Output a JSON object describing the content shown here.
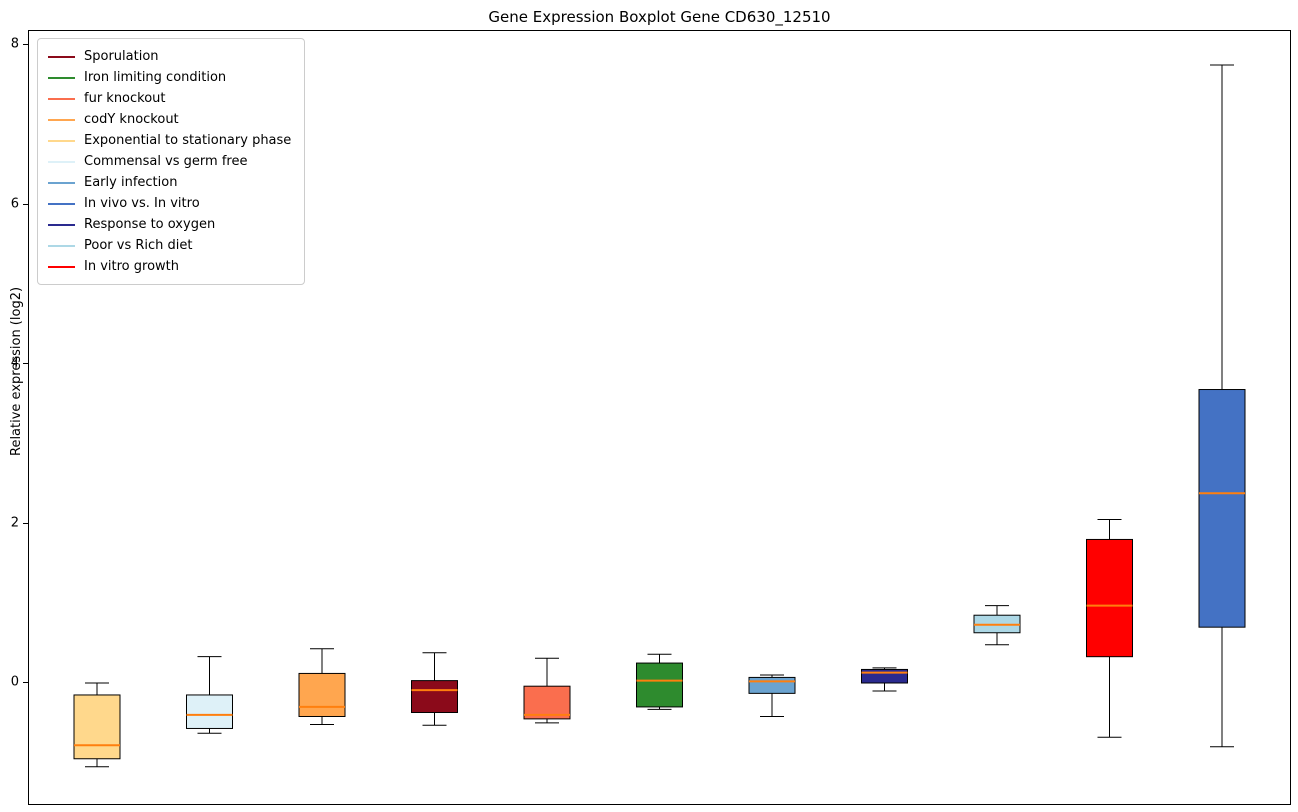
{
  "chart_data": {
    "type": "box",
    "title": "Gene Expression Boxplot Gene CD630_12510",
    "ylabel": "Relative expression (log2)",
    "xlabel": "",
    "yticks": [
      0,
      2,
      4,
      6,
      8
    ],
    "ylim": [
      -1.55,
      8.18
    ],
    "grid": false,
    "legend_position": "upper left",
    "median_color": "#ff7f0e",
    "legend": [
      {
        "label": "Sporulation",
        "color": "#8b0a1a"
      },
      {
        "label": "Iron limiting condition",
        "color": "#2e8b2e"
      },
      {
        "label": "fur knockout",
        "color": "#fa6e4e"
      },
      {
        "label": "codY knockout",
        "color": "#ffa64f"
      },
      {
        "label": "Exponential to stationary phase",
        "color": "#ffd88c"
      },
      {
        "label": "Commensal vs germ free",
        "color": "#def1f8"
      },
      {
        "label": "Early infection",
        "color": "#6ba3d0"
      },
      {
        "label": "In vivo vs. In vitro",
        "color": "#4472c4"
      },
      {
        "label": "Response to oxygen",
        "color": "#2a2a8f"
      },
      {
        "label": "Poor vs Rich diet",
        "color": "#add8e6"
      },
      {
        "label": "In vitro growth",
        "color": "#ff0000"
      }
    ],
    "boxes": [
      {
        "name": "Exponential to stationary phase",
        "color": "#ffd88c",
        "whisker_low": -1.05,
        "q1": -0.95,
        "median": -0.78,
        "q3": -0.15,
        "whisker_high": 0.0
      },
      {
        "name": "Commensal vs germ free",
        "color": "#def1f8",
        "whisker_low": -0.63,
        "q1": -0.57,
        "median": -0.4,
        "q3": -0.15,
        "whisker_high": 0.33
      },
      {
        "name": "codY knockout",
        "color": "#ffa64f",
        "whisker_low": -0.52,
        "q1": -0.42,
        "median": -0.3,
        "q3": 0.12,
        "whisker_high": 0.43
      },
      {
        "name": "Sporulation",
        "color": "#8b0a1a",
        "whisker_low": -0.53,
        "q1": -0.37,
        "median": -0.09,
        "q3": 0.03,
        "whisker_high": 0.38
      },
      {
        "name": "fur knockout",
        "color": "#fa6e4e",
        "whisker_low": -0.5,
        "q1": -0.45,
        "median": -0.4,
        "q3": -0.04,
        "whisker_high": 0.31
      },
      {
        "name": "Iron limiting condition",
        "color": "#2e8b2e",
        "whisker_low": -0.33,
        "q1": -0.3,
        "median": 0.03,
        "q3": 0.25,
        "whisker_high": 0.36
      },
      {
        "name": "Early infection",
        "color": "#6ba3d0",
        "whisker_low": -0.42,
        "q1": -0.13,
        "median": 0.02,
        "q3": 0.07,
        "whisker_high": 0.1
      },
      {
        "name": "Response to oxygen",
        "color": "#2a2a8f",
        "whisker_low": -0.1,
        "q1": 0.0,
        "median": 0.13,
        "q3": 0.17,
        "whisker_high": 0.19
      },
      {
        "name": "Poor vs Rich diet",
        "color": "#add8e6",
        "whisker_low": 0.48,
        "q1": 0.63,
        "median": 0.73,
        "q3": 0.85,
        "whisker_high": 0.97
      },
      {
        "name": "In vitro growth",
        "color": "#ff0000",
        "whisker_low": -0.68,
        "q1": 0.33,
        "median": 0.97,
        "q3": 1.8,
        "whisker_high": 2.05
      },
      {
        "name": "In vivo vs. In vitro",
        "color": "#4472c4",
        "whisker_low": -0.8,
        "q1": 0.7,
        "median": 2.38,
        "q3": 3.68,
        "whisker_high": 7.75
      }
    ]
  }
}
